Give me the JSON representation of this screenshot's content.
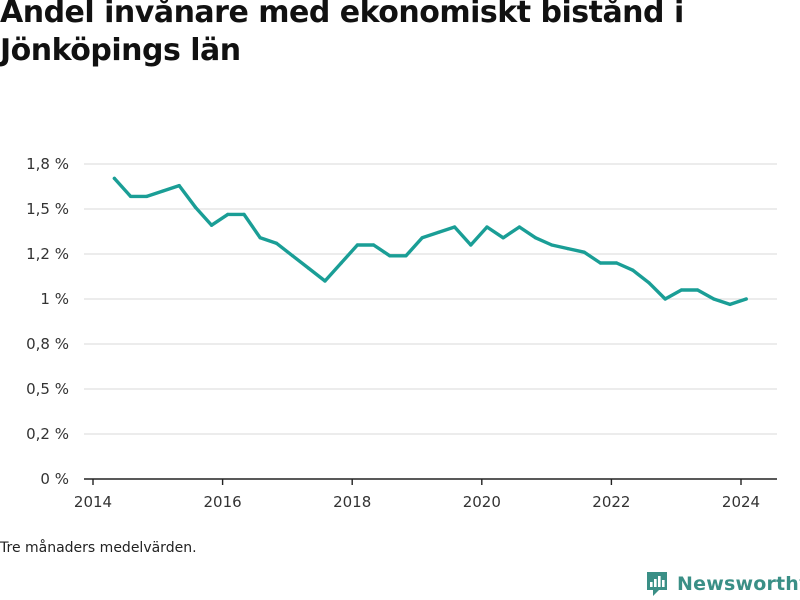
{
  "chart_data": {
    "type": "line",
    "title": "Andel invånare med ekonomiskt bistånd i Jönköpings län",
    "xlabel": "",
    "ylabel": "",
    "xlim": [
      2014,
      2024.6
    ],
    "ylim": [
      0,
      1.75
    ],
    "x_ticks": [
      {
        "value": 2014,
        "label": "2014"
      },
      {
        "value": 2016,
        "label": "2016"
      },
      {
        "value": 2018,
        "label": "2018"
      },
      {
        "value": 2020,
        "label": "2020"
      },
      {
        "value": 2022,
        "label": "2022"
      },
      {
        "value": 2024,
        "label": "2024"
      }
    ],
    "y_ticks": [
      {
        "value": 0,
        "label": "0 %"
      },
      {
        "value": 0.25,
        "label": "0,2 %"
      },
      {
        "value": 0.5,
        "label": "0,5 %"
      },
      {
        "value": 0.75,
        "label": "0,8 %"
      },
      {
        "value": 1.0,
        "label": "1 %"
      },
      {
        "value": 1.25,
        "label": "1,2 %"
      },
      {
        "value": 1.5,
        "label": "1,5 %"
      },
      {
        "value": 1.75,
        "label": "1,8 %"
      }
    ],
    "grid": true,
    "color": "#1a9e96",
    "series": [
      {
        "x": [
          2014.33,
          2014.58,
          2014.83,
          2015.08,
          2015.33,
          2015.58,
          2015.83,
          2016.08,
          2016.33,
          2016.58,
          2016.83,
          2017.08,
          2017.33,
          2017.58,
          2017.83,
          2018.08,
          2018.33,
          2018.58,
          2018.83,
          2019.08,
          2019.33,
          2019.58,
          2019.83,
          2020.08,
          2020.33,
          2020.58,
          2020.83,
          2021.08,
          2021.33,
          2021.58,
          2021.83,
          2022.08,
          2022.33,
          2022.58,
          2022.83,
          2023.08,
          2023.33,
          2023.58,
          2023.83,
          2024.08
        ],
        "values": [
          1.67,
          1.57,
          1.57,
          1.6,
          1.63,
          1.51,
          1.41,
          1.47,
          1.47,
          1.34,
          1.31,
          1.24,
          1.17,
          1.1,
          1.2,
          1.3,
          1.3,
          1.24,
          1.24,
          1.34,
          1.37,
          1.4,
          1.3,
          1.4,
          1.34,
          1.4,
          1.34,
          1.3,
          1.28,
          1.26,
          1.2,
          1.2,
          1.16,
          1.09,
          1.0,
          1.05,
          1.05,
          1.0,
          0.97,
          1.0
        ]
      }
    ]
  },
  "footnote": "Tre månaders medelvärden.",
  "brand": {
    "name": "Newsworthy",
    "color": "#3a8f86"
  }
}
